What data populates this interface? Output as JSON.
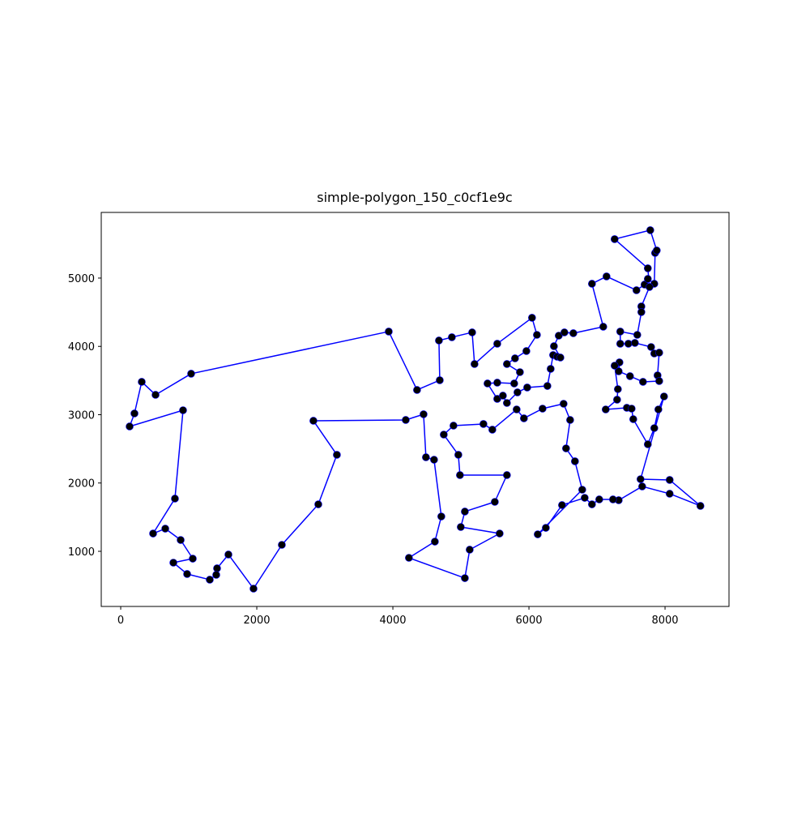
{
  "chart_data": {
    "type": "line",
    "title": "simple-polygon_150_c0cf1e9c",
    "closed": true,
    "x": [
      131,
      202,
      309,
      512,
      1035,
      3939,
      4355,
      4689,
      4677,
      4867,
      5165,
      5200,
      5534,
      6045,
      6117,
      5962,
      5795,
      5676,
      5867,
      5783,
      5534,
      5391,
      5534,
      5617,
      5676,
      5831,
      5974,
      6271,
      6319,
      6355,
      6414,
      6462,
      6367,
      6438,
      6521,
      6652,
      7092,
      6926,
      7140,
      7580,
      7699,
      7747,
      7842,
      7854,
      7878,
      7783,
      7259,
      7747,
      7771,
      7652,
      7652,
      7592,
      7342,
      7342,
      7461,
      7557,
      7795,
      7842,
      7914,
      7890,
      7914,
      7676,
      7485,
      7319,
      7330,
      7259,
      7307,
      7295,
      7128,
      7438,
      7509,
      7533,
      7747,
      7842,
      7902,
      7985,
      7640,
      8068,
      8520,
      8068,
      7664,
      7319,
      7235,
      7033,
      6926,
      6819,
      6486,
      6248,
      6129,
      6783,
      6676,
      6545,
      6605,
      6509,
      6200,
      5926,
      5819,
      5462,
      5331,
      4891,
      4748,
      4962,
      4986,
      5676,
      5498,
      5058,
      4998,
      5569,
      5129,
      5058,
      4236,
      4617,
      4712,
      4605,
      4486,
      4451,
      4189,
      2832,
      3177,
      2904,
      2368,
      1952,
      1583,
      1416,
      1404,
      1309,
      976,
      774,
      1059,
      881,
      655,
      476,
      797,
      916
    ],
    "series": [
      {
        "color": "#0000ff",
        "marker_color": "#000000",
        "values": [
          2828,
          3018,
          3481,
          3291,
          3600,
          4217,
          3362,
          3505,
          4086,
          4134,
          4205,
          3742,
          4039,
          4419,
          4169,
          3932,
          3825,
          3742,
          3623,
          3457,
          3469,
          3457,
          3232,
          3279,
          3172,
          3327,
          3398,
          3421,
          3671,
          3873,
          3849,
          3837,
          4003,
          4157,
          4205,
          4193,
          4288,
          4917,
          5024,
          4822,
          4905,
          4988,
          4917,
          5368,
          5404,
          5701,
          5570,
          5143,
          4870,
          4585,
          4502,
          4169,
          4217,
          4039,
          4039,
          4051,
          3991,
          3896,
          3908,
          3576,
          3493,
          3481,
          3564,
          3635,
          3766,
          3718,
          3374,
          3220,
          3077,
          3101,
          3089,
          2935,
          2567,
          2804,
          3077,
          3267,
          2056,
          2045,
          1665,
          1843,
          1950,
          1748,
          1760,
          1760,
          1688,
          1783,
          1677,
          1344,
          1249,
          1902,
          2318,
          2507,
          2923,
          3160,
          3089,
          2947,
          3077,
          2781,
          2864,
          2840,
          2709,
          2413,
          2116,
          2116,
          1724,
          1582,
          1356,
          1261,
          1024,
          608,
          905,
          1142,
          1510,
          2341,
          2377,
          3006,
          2923,
          2911,
          2413,
          1688,
          1095,
          454,
          953,
          751,
          656,
          585,
          668,
          834,
          893,
          1166,
          1332,
          1261,
          1772,
          3065
        ]
      }
    ],
    "xlim": [
      -286,
      8940
    ],
    "ylim": [
      193,
      5961
    ],
    "xticks": [
      0,
      2000,
      4000,
      6000,
      8000
    ],
    "yticks": [
      1000,
      2000,
      3000,
      4000,
      5000
    ]
  }
}
